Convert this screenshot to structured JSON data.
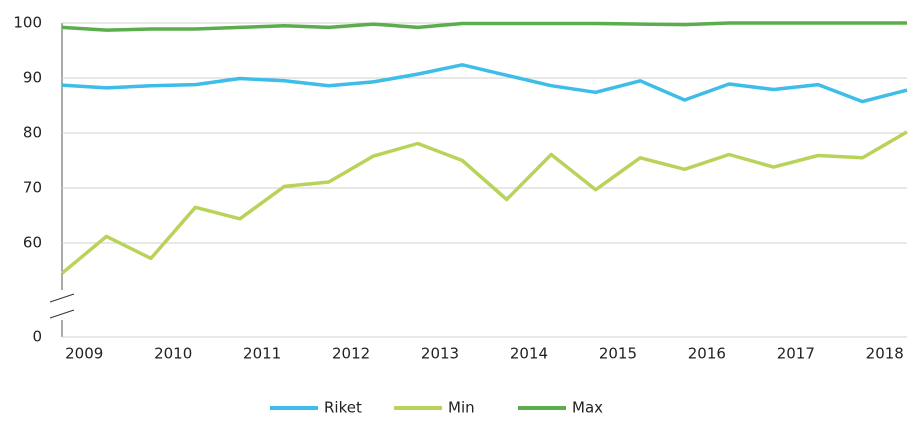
{
  "chart_data": {
    "type": "line",
    "categories": [
      "2009",
      null,
      "2010",
      null,
      "2011",
      null,
      "2012",
      null,
      "2013",
      null,
      "2014",
      null,
      "2015",
      null,
      "2016",
      null,
      "2017",
      null,
      "2018",
      null
    ],
    "series": [
      {
        "name": "Riket",
        "color": "#3dbde8",
        "values": [
          88.7,
          88.2,
          88.6,
          88.8,
          89.9,
          89.5,
          88.6,
          89.3,
          90.7,
          92.4,
          90.5,
          88.6,
          87.4,
          89.5,
          86.0,
          88.9,
          87.9,
          88.8,
          85.7,
          87.8
        ]
      },
      {
        "name": "Min",
        "color": "#b9d35a",
        "values": [
          54.5,
          61.2,
          57.2,
          66.5,
          64.4,
          70.3,
          71.1,
          75.8,
          78.1,
          75.0,
          67.9,
          76.1,
          69.7,
          75.5,
          73.4,
          76.1,
          73.8,
          75.9,
          75.5,
          80.2
        ]
      },
      {
        "name": "Max",
        "color": "#5cad4e",
        "values": [
          99.2,
          98.7,
          98.9,
          98.9,
          99.2,
          99.5,
          99.2,
          99.8,
          99.2,
          99.9,
          99.9,
          99.9,
          99.9,
          99.8,
          99.7,
          100,
          100,
          100,
          100,
          100
        ]
      }
    ],
    "ylim": [
      0,
      100
    ],
    "yticks": [
      0,
      60,
      70,
      80,
      90,
      100
    ],
    "grid": true,
    "axis_break": true,
    "legend": "bottom"
  }
}
